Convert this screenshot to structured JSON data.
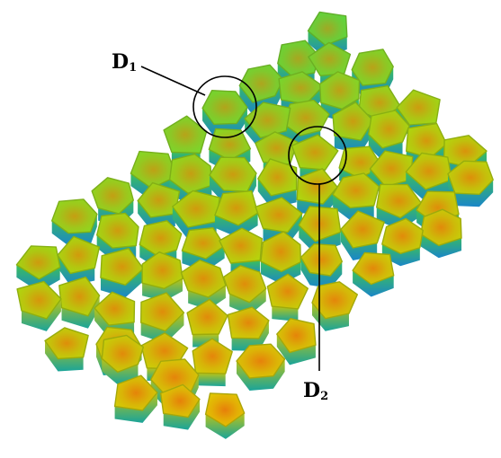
{
  "figure": {
    "background": "#ffffff",
    "colors": {
      "cell_center": "#e8790a",
      "low": "#0fd66a",
      "mid": "#a6dc10",
      "high": "#f0c400",
      "side_top": "#2fb85a",
      "side_bottom": "#1a7fd0",
      "outline": "#7a8a20"
    },
    "callouts": [
      {
        "label": "D",
        "subscript": "1"
      },
      {
        "label": "D",
        "subscript": "2"
      }
    ]
  }
}
